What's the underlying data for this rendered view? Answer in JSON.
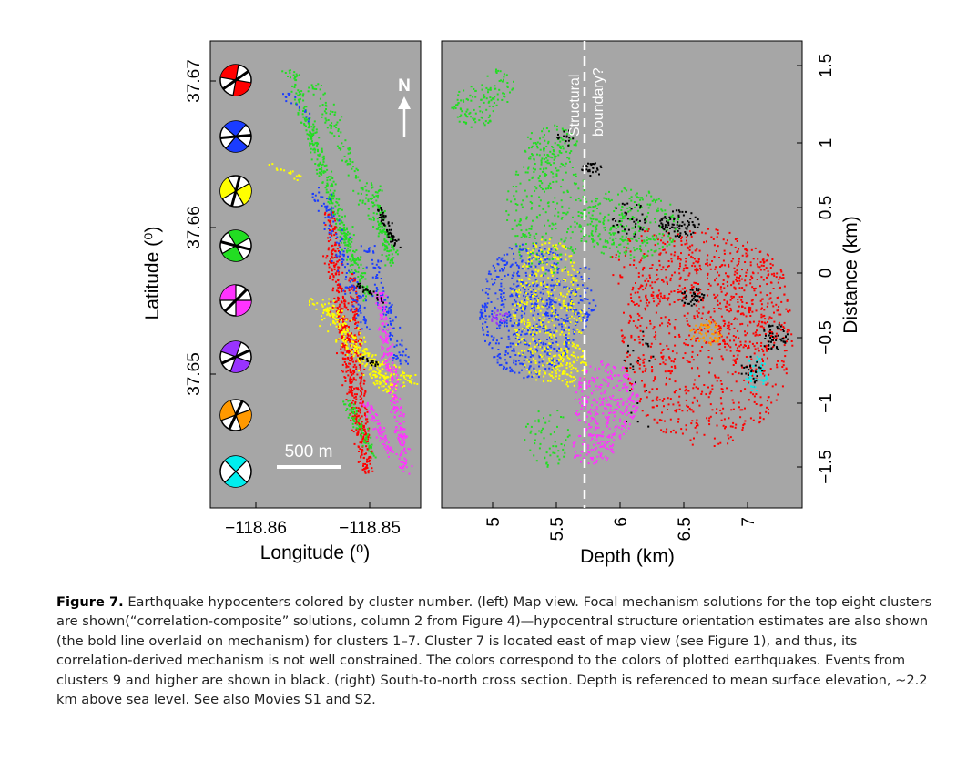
{
  "left_panel": {
    "x_label": "Longitude (⁰)",
    "y_label": "Latitude (⁰)",
    "x_ticks": [
      "−118.86",
      "−118.85"
    ],
    "y_ticks": [
      "37.67",
      "37.66",
      "37.65"
    ],
    "north_label": "N",
    "scale_bar_label": "500 m",
    "mechanism_colors": [
      "#ff0000",
      "#1a3cff",
      "#ffff00",
      "#22dd22",
      "#ff33ff",
      "#9933ff",
      "#ff9900",
      "#00eeee"
    ],
    "background_color": "#a6a6a6"
  },
  "right_panel": {
    "x_label": "Depth (km)",
    "y_label": "Distance (km)",
    "x_ticks": [
      "5",
      "5.5",
      "6",
      "6.5",
      "7"
    ],
    "y_ticks": [
      "1.5",
      "1",
      "0.5",
      "0",
      "−0.5",
      "−1",
      "−1.5"
    ],
    "boundary_label_line1": "Structural",
    "boundary_label_line2": "boundary?",
    "background_color": "#a6a6a6"
  },
  "caption": {
    "label": "Figure 7.",
    "text": "Earthquake hypocenters colored by cluster number. (left) Map view. Focal mechanism solutions for the top eight clusters are shown(“correlation-composite” solutions, column 2 from Figure 4)—hypocentral structure orientation estimates are also shown (the bold line overlaid on mechanism) for clusters 1–7. Cluster 7 is located east of map view (see Figure 1), and thus, its correlation-derived mechanism is not well constrained. The colors correspond to the colors of plotted earthquakes. Events from clusters 9 and higher are shown in black. (right) South-to-north cross section. Depth is referenced to mean surface elevation, ~2.2 km above sea level. See also Movies S1 and S2."
  },
  "colors": {
    "red": "#ff0000",
    "blue": "#1a3cff",
    "yellow": "#ffff00",
    "green": "#22dd22",
    "magenta": "#ff33ff",
    "purple": "#9933ff",
    "orange": "#ff9900",
    "cyan": "#00eeee",
    "black": "#000000"
  }
}
